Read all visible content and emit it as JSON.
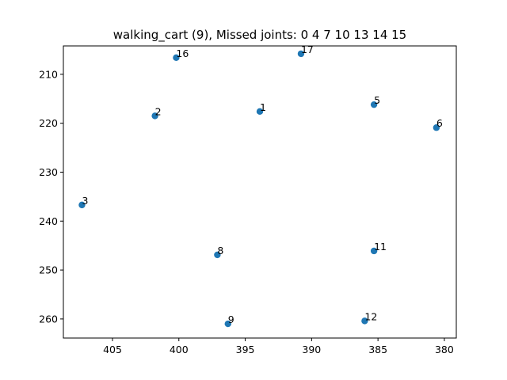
{
  "chart_data": {
    "type": "scatter",
    "title": "walking_cart (9), Missed joints: 0 4 7 10 13 14 15",
    "xlabel": "",
    "ylabel": "",
    "x_inverted": true,
    "y_inverted": true,
    "grid": false,
    "xlim": [
      408.7,
      379.1
    ],
    "ylim": [
      263.9,
      204.2
    ],
    "xticks": [
      405,
      400,
      395,
      390,
      385,
      380
    ],
    "yticks": [
      210,
      220,
      230,
      240,
      250,
      260
    ],
    "points_color": "#1f77b4",
    "points": [
      {
        "label": "1",
        "x": 393.9,
        "y": 217.6
      },
      {
        "label": "2",
        "x": 401.8,
        "y": 218.5
      },
      {
        "label": "3",
        "x": 407.3,
        "y": 236.7
      },
      {
        "label": "5",
        "x": 385.3,
        "y": 216.2
      },
      {
        "label": "6",
        "x": 380.6,
        "y": 220.9
      },
      {
        "label": "8",
        "x": 397.1,
        "y": 246.9
      },
      {
        "label": "9",
        "x": 396.3,
        "y": 261.0
      },
      {
        "label": "11",
        "x": 385.3,
        "y": 246.1
      },
      {
        "label": "12",
        "x": 386.0,
        "y": 260.4
      },
      {
        "label": "16",
        "x": 400.2,
        "y": 206.6
      },
      {
        "label": "17",
        "x": 390.8,
        "y": 205.8
      }
    ]
  }
}
